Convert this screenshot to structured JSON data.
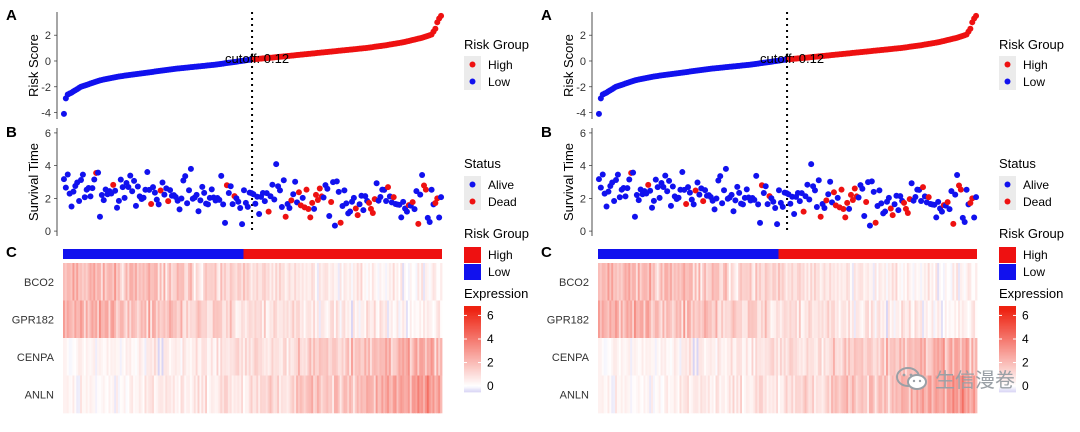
{
  "panels": [
    {
      "label_a": "A",
      "label_b": "B",
      "label_c": "C"
    },
    {
      "label_a": "A",
      "label_b": "B",
      "label_c": "C"
    }
  ],
  "watermark": "生信漫卷",
  "chart_data": [
    {
      "type": "scatter",
      "panel": "A",
      "ylabel": "Risk Score",
      "ylim": [
        -4.5,
        3.8
      ],
      "yticks": [
        -4,
        -2,
        0,
        2
      ],
      "n_samples": 200,
      "cutoff": {
        "value": 0.12,
        "label": "cutoff: 0.12",
        "index": 100
      },
      "legend": {
        "title": "Risk Group",
        "placement": "right",
        "items": [
          {
            "label": "High",
            "color": "#ee1111"
          },
          {
            "label": "Low",
            "color": "#1111ee"
          }
        ]
      },
      "curve_points": [
        [
          1,
          -4.1
        ],
        [
          2,
          -2.9
        ],
        [
          3,
          -2.6
        ],
        [
          5,
          -2.45
        ],
        [
          10,
          -2.0
        ],
        [
          20,
          -1.5
        ],
        [
          30,
          -1.2
        ],
        [
          40,
          -1.0
        ],
        [
          50,
          -0.8
        ],
        [
          60,
          -0.6
        ],
        [
          70,
          -0.45
        ],
        [
          80,
          -0.3
        ],
        [
          90,
          -0.1
        ],
        [
          100,
          0.12
        ],
        [
          110,
          0.25
        ],
        [
          120,
          0.4
        ],
        [
          130,
          0.55
        ],
        [
          140,
          0.7
        ],
        [
          150,
          0.85
        ],
        [
          160,
          1.0
        ],
        [
          170,
          1.2
        ],
        [
          180,
          1.45
        ],
        [
          190,
          1.8
        ],
        [
          195,
          2.05
        ],
        [
          197,
          2.5
        ],
        [
          198,
          3.0
        ],
        [
          199,
          3.3
        ],
        [
          200,
          3.5
        ]
      ]
    },
    {
      "type": "scatter",
      "panel": "B",
      "ylabel": "Survival Time",
      "ylim": [
        -0.3,
        6.3
      ],
      "yticks": [
        0,
        2,
        4,
        6
      ],
      "legend": {
        "title": "Status",
        "placement": "right",
        "items": [
          {
            "label": "Alive",
            "color": "#1111ee"
          },
          {
            "label": "Dead",
            "color": "#ee1111"
          }
        ]
      },
      "generator": {
        "seed": 7,
        "n": 200,
        "dead_rate_low": 0.05,
        "dead_rate_high": 0.3
      }
    },
    {
      "type": "heatmap",
      "panel": "C",
      "annotation_bar": {
        "cut_fraction": 0.5,
        "colors": {
          "Low": "#1111ee",
          "High": "#ee1111"
        }
      },
      "annotation_legend": {
        "title": "Risk Group",
        "items": [
          {
            "label": "High",
            "color": "#ee1111"
          },
          {
            "label": "Low",
            "color": "#1111ee"
          }
        ]
      },
      "genes": [
        "BCO2",
        "GPR182",
        "CENPA",
        "ANLN"
      ],
      "expression_legend": {
        "title": "Expression",
        "ticks": [
          6,
          4,
          2,
          0
        ],
        "range": [
          -0.5,
          6.8
        ],
        "low_color": "#d8d4f5",
        "mid_color": "#ffffff",
        "high_color": "#ee2211"
      },
      "gene_trend": [
        {
          "gene": "BCO2",
          "left_mean": 2.4,
          "right_mean": 0.3,
          "noise": 1.3
        },
        {
          "gene": "GPR182",
          "left_mean": 2.5,
          "right_mean": 0.3,
          "noise": 1.4
        },
        {
          "gene": "CENPA",
          "left_mean": 0.2,
          "right_mean": 2.6,
          "noise": 1.2
        },
        {
          "gene": "ANLN",
          "left_mean": 0.2,
          "right_mean": 3.0,
          "noise": 1.1
        }
      ]
    }
  ]
}
